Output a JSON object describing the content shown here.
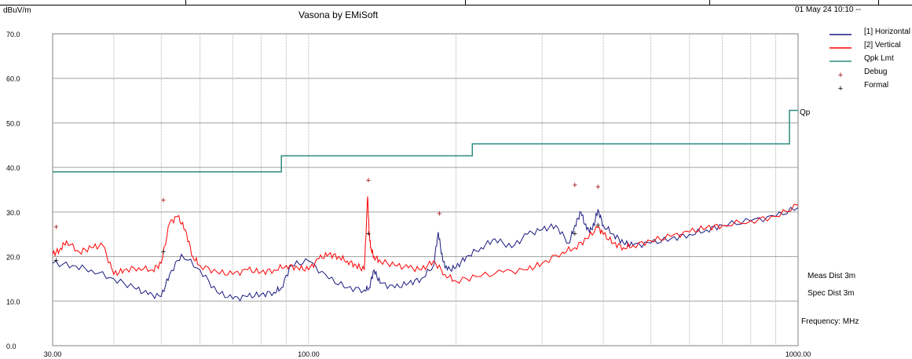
{
  "header": {
    "unit": "dBuV/m",
    "title": "Vasona by EMiSoft",
    "timestamp": "01 May 24 10:10 --"
  },
  "notes": {
    "meas_dist": "Meas Dist 3m",
    "spec_dist": "Spec Dist 3m",
    "frequency": "Frequency: MHz",
    "limit_tag": "Qp"
  },
  "colors": {
    "horizontal": "#1a1a80",
    "vertical": "#ff0000",
    "limit": "#2e8b80",
    "debug": "#990000",
    "formal": "#000000"
  },
  "chart_data": {
    "type": "line",
    "xscale": "log",
    "xlim": [
      30,
      1000
    ],
    "ylim": [
      0,
      70
    ],
    "y_ticks": [
      "0.0",
      "10.0",
      "20.0",
      "30.0",
      "40.0",
      "50.0",
      "60.0",
      "70.0"
    ],
    "x_ticks": [
      {
        "value": 30,
        "label": "30.00"
      },
      {
        "value": 100,
        "label": "100.00"
      },
      {
        "value": 1000,
        "label": "1000.00"
      }
    ],
    "grid": true,
    "legend_position": "right",
    "legend": [
      {
        "label": "[1] Horizontal",
        "kind": "line",
        "color": "#1a1a80"
      },
      {
        "label": "[2] Vertical",
        "kind": "line",
        "color": "#ff0000"
      },
      {
        "label": "Qpk Lmt",
        "kind": "line",
        "color": "#2e8b80"
      },
      {
        "label": "Debug",
        "kind": "marker",
        "color": "#990000"
      },
      {
        "label": "Formal",
        "kind": "marker",
        "color": "#000000"
      }
    ],
    "series": [
      {
        "name": "[1] Horizontal",
        "x": [
          30,
          33,
          36,
          40,
          44,
          47,
          50,
          52,
          55,
          60,
          65,
          70,
          75,
          80,
          85,
          88,
          92,
          100,
          110,
          120,
          130,
          133,
          136,
          140,
          150,
          160,
          170,
          180,
          184,
          188,
          192,
          200,
          210,
          225,
          240,
          260,
          280,
          300,
          320,
          340,
          350,
          360,
          370,
          380,
          390,
          400,
          420,
          440,
          460,
          500,
          550,
          600,
          650,
          700,
          800,
          900,
          1000
        ],
        "y": [
          18.5,
          18,
          17,
          15,
          13,
          11.5,
          11,
          16,
          20.5,
          17,
          12,
          10.5,
          11,
          11.5,
          12,
          13,
          18,
          19,
          15,
          13,
          12.5,
          13,
          17,
          14,
          13,
          14,
          15,
          18,
          25.5,
          19,
          17,
          17.5,
          20,
          22,
          24,
          22,
          25,
          26,
          27,
          23,
          27,
          30,
          26,
          26,
          30.5,
          27,
          25,
          23,
          22.5,
          23,
          24,
          25,
          26,
          27,
          28,
          29,
          31
        ]
      },
      {
        "name": "[2] Vertical",
        "x": [
          30,
          31,
          32,
          34,
          36,
          38,
          40,
          42,
          45,
          48,
          50,
          52,
          54,
          56,
          58,
          60,
          65,
          70,
          75,
          80,
          85,
          90,
          95,
          100,
          105,
          110,
          115,
          120,
          125,
          130,
          132,
          133,
          134,
          136,
          140,
          150,
          160,
          170,
          180,
          190,
          200,
          220,
          250,
          280,
          300,
          330,
          350,
          370,
          390,
          400,
          420,
          440,
          460,
          500,
          550,
          600,
          650,
          700,
          800,
          900,
          1000
        ],
        "y": [
          20.5,
          21.5,
          23.5,
          21,
          22,
          22.5,
          16,
          17,
          17.5,
          17,
          18.5,
          27.5,
          29,
          26,
          20,
          18,
          16.5,
          16,
          17,
          16.5,
          17,
          18,
          17.5,
          17,
          19.5,
          20.5,
          20,
          19,
          18,
          17,
          33.5,
          25,
          22,
          20,
          19,
          18,
          17.5,
          17,
          19,
          16,
          14.5,
          15.5,
          16.5,
          17,
          18.5,
          21,
          22,
          24,
          26.5,
          25,
          23,
          22,
          22.5,
          23.5,
          24.5,
          25.5,
          26.5,
          27,
          28,
          29,
          31.5
        ]
      },
      {
        "name": "Qpk Lmt",
        "x": [
          30,
          88,
          88,
          216,
          216,
          960,
          960,
          1000
        ],
        "y": [
          39,
          39,
          42.6,
          42.6,
          45.3,
          45.3,
          52.8,
          52.8
        ]
      }
    ],
    "markers": [
      {
        "series": "Debug",
        "points": [
          [
            30.5,
            26.5
          ],
          [
            50.5,
            32.5
          ],
          [
            132.5,
            37
          ],
          [
            185,
            29.5
          ],
          [
            350,
            36
          ],
          [
            390,
            35.5
          ]
        ]
      },
      {
        "series": "Formal",
        "points": [
          [
            30.5,
            19
          ],
          [
            50.5,
            21
          ],
          [
            132.5,
            25
          ],
          [
            350,
            25
          ],
          [
            390,
            27
          ]
        ]
      }
    ]
  }
}
